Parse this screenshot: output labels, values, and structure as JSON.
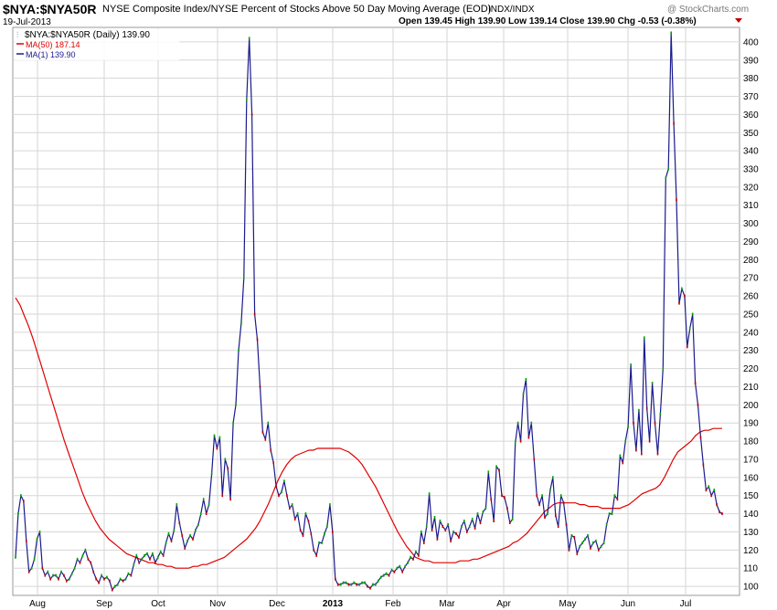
{
  "header": {
    "symbol": "$NYA:$NYA50R",
    "description": "NYSE Composite Index/NYSE Percent of Stocks Above 50 Day Moving Average (EOD)",
    "exchange": "INDX/INDX",
    "date": "19-Jul-2013",
    "watermark": "@ StockCharts.com",
    "ohlc": "Open 139.45  High 139.90  Low 139.14  Close 139.90  Chg -0.53 (-0.38%)"
  },
  "legend": {
    "price": "$NYA:$NYA50R (Daily) 139.90",
    "ma50": "MA(50) 187.14",
    "ma1": "MA(1) 139.90"
  },
  "colors": {
    "price": "#1a1a8c",
    "ma50": "#e00000",
    "grid": "#d6d6d6",
    "up": "#00a000",
    "down": "#c00000"
  },
  "chart_data": {
    "type": "line",
    "title": "$NYA:$NYA50R",
    "ylim": [
      95,
      408
    ],
    "yticks": [
      100,
      110,
      120,
      130,
      140,
      150,
      160,
      170,
      180,
      190,
      200,
      210,
      220,
      230,
      240,
      250,
      260,
      270,
      280,
      290,
      300,
      310,
      320,
      330,
      340,
      350,
      360,
      370,
      380,
      390,
      400
    ],
    "grid": true,
    "legend_position": "top-left",
    "x_labels": [
      "Aug",
      "Sep",
      "Oct",
      "Nov",
      "Dec",
      "2013",
      "Feb",
      "Mar",
      "Apr",
      "May",
      "Jun",
      "Jul"
    ],
    "series": [
      {
        "name": "MA(1) 139.90",
        "values": [
          116,
          140,
          150,
          147,
          125,
          108,
          110,
          115,
          126,
          130,
          110,
          106,
          108,
          104,
          106,
          106,
          104,
          108,
          106,
          103,
          104,
          107,
          110,
          115,
          113,
          117,
          120,
          115,
          113,
          108,
          104,
          102,
          106,
          104,
          105,
          103,
          98,
          100,
          101,
          104,
          103,
          104,
          107,
          106,
          112,
          117,
          113,
          115,
          117,
          118,
          115,
          118,
          113,
          116,
          119,
          117,
          124,
          129,
          125,
          131,
          145,
          135,
          128,
          121,
          125,
          128,
          126,
          131,
          134,
          140,
          148,
          140,
          145,
          162,
          183,
          176,
          182,
          150,
          170,
          165,
          148,
          190,
          200,
          230,
          245,
          270,
          368,
          402,
          360,
          250,
          236,
          210,
          185,
          181,
          190,
          175,
          168,
          155,
          150,
          152,
          158,
          150,
          143,
          145,
          137,
          140,
          131,
          128,
          140,
          136,
          129,
          120,
          117,
          124,
          124,
          129,
          133,
          145,
          130,
          104,
          101,
          101,
          102,
          102,
          101,
          101,
          102,
          101,
          101,
          102,
          102,
          100,
          99,
          101,
          101,
          103,
          105,
          106,
          107,
          106,
          109,
          108,
          110,
          111,
          108,
          111,
          113,
          116,
          115,
          119,
          117,
          130,
          124,
          133,
          151,
          131,
          138,
          126,
          136,
          133,
          131,
          134,
          125,
          130,
          129,
          127,
          133,
          136,
          130,
          133,
          137,
          132,
          140,
          135,
          141,
          143,
          163,
          148,
          136,
          166,
          164,
          150,
          149,
          143,
          135,
          137,
          179,
          190,
          180,
          206,
          214,
          182,
          190,
          170,
          150,
          145,
          150,
          138,
          140,
          153,
          160,
          139,
          133,
          150,
          146,
          134,
          120,
          128,
          127,
          118,
          122,
          124,
          126,
          128,
          121,
          124,
          125,
          120,
          122,
          124,
          134,
          140,
          140,
          150,
          148,
          172,
          168,
          180,
          188,
          222,
          190,
          175,
          197,
          173,
          237,
          198,
          180,
          212,
          190,
          173,
          195,
          220,
          325,
          330,
          405,
          355,
          313,
          256,
          264,
          260,
          232,
          242,
          250,
          212,
          200,
          182,
          167,
          153,
          155,
          150,
          153,
          145,
          141,
          140
        ]
      },
      {
        "name": "MA(50) 187.14",
        "values": [
          259,
          255,
          249,
          243,
          236,
          228,
          220,
          212,
          204,
          196,
          188,
          180,
          173,
          166,
          159,
          152,
          146,
          141,
          136,
          132,
          129,
          126,
          124,
          122,
          120,
          118,
          117,
          116,
          115,
          114,
          113,
          113,
          112,
          112,
          111,
          111,
          110,
          110,
          110,
          110,
          111,
          111,
          112,
          112,
          113,
          114,
          115,
          116,
          118,
          120,
          122,
          124,
          126,
          129,
          132,
          136,
          141,
          146,
          152,
          158,
          163,
          167,
          170,
          172,
          173,
          174,
          175,
          175,
          176,
          176,
          176,
          176,
          176,
          176,
          175,
          174,
          172,
          170,
          167,
          163,
          159,
          155,
          150,
          145,
          140,
          135,
          130,
          126,
          122,
          119,
          116,
          115,
          114,
          114,
          113,
          113,
          113,
          113,
          113,
          113,
          114,
          114,
          114,
          115,
          115,
          116,
          117,
          118,
          119,
          120,
          121,
          122,
          124,
          125,
          127,
          129,
          132,
          135,
          138,
          141,
          143,
          145,
          146,
          146,
          146,
          146,
          146,
          145,
          145,
          144,
          144,
          144,
          143,
          143,
          143,
          143,
          143,
          144,
          145,
          147,
          149,
          151,
          152,
          153,
          154,
          156,
          160,
          165,
          170,
          174,
          176,
          178,
          180,
          183,
          185,
          186,
          186,
          187,
          187,
          187
        ]
      }
    ]
  }
}
